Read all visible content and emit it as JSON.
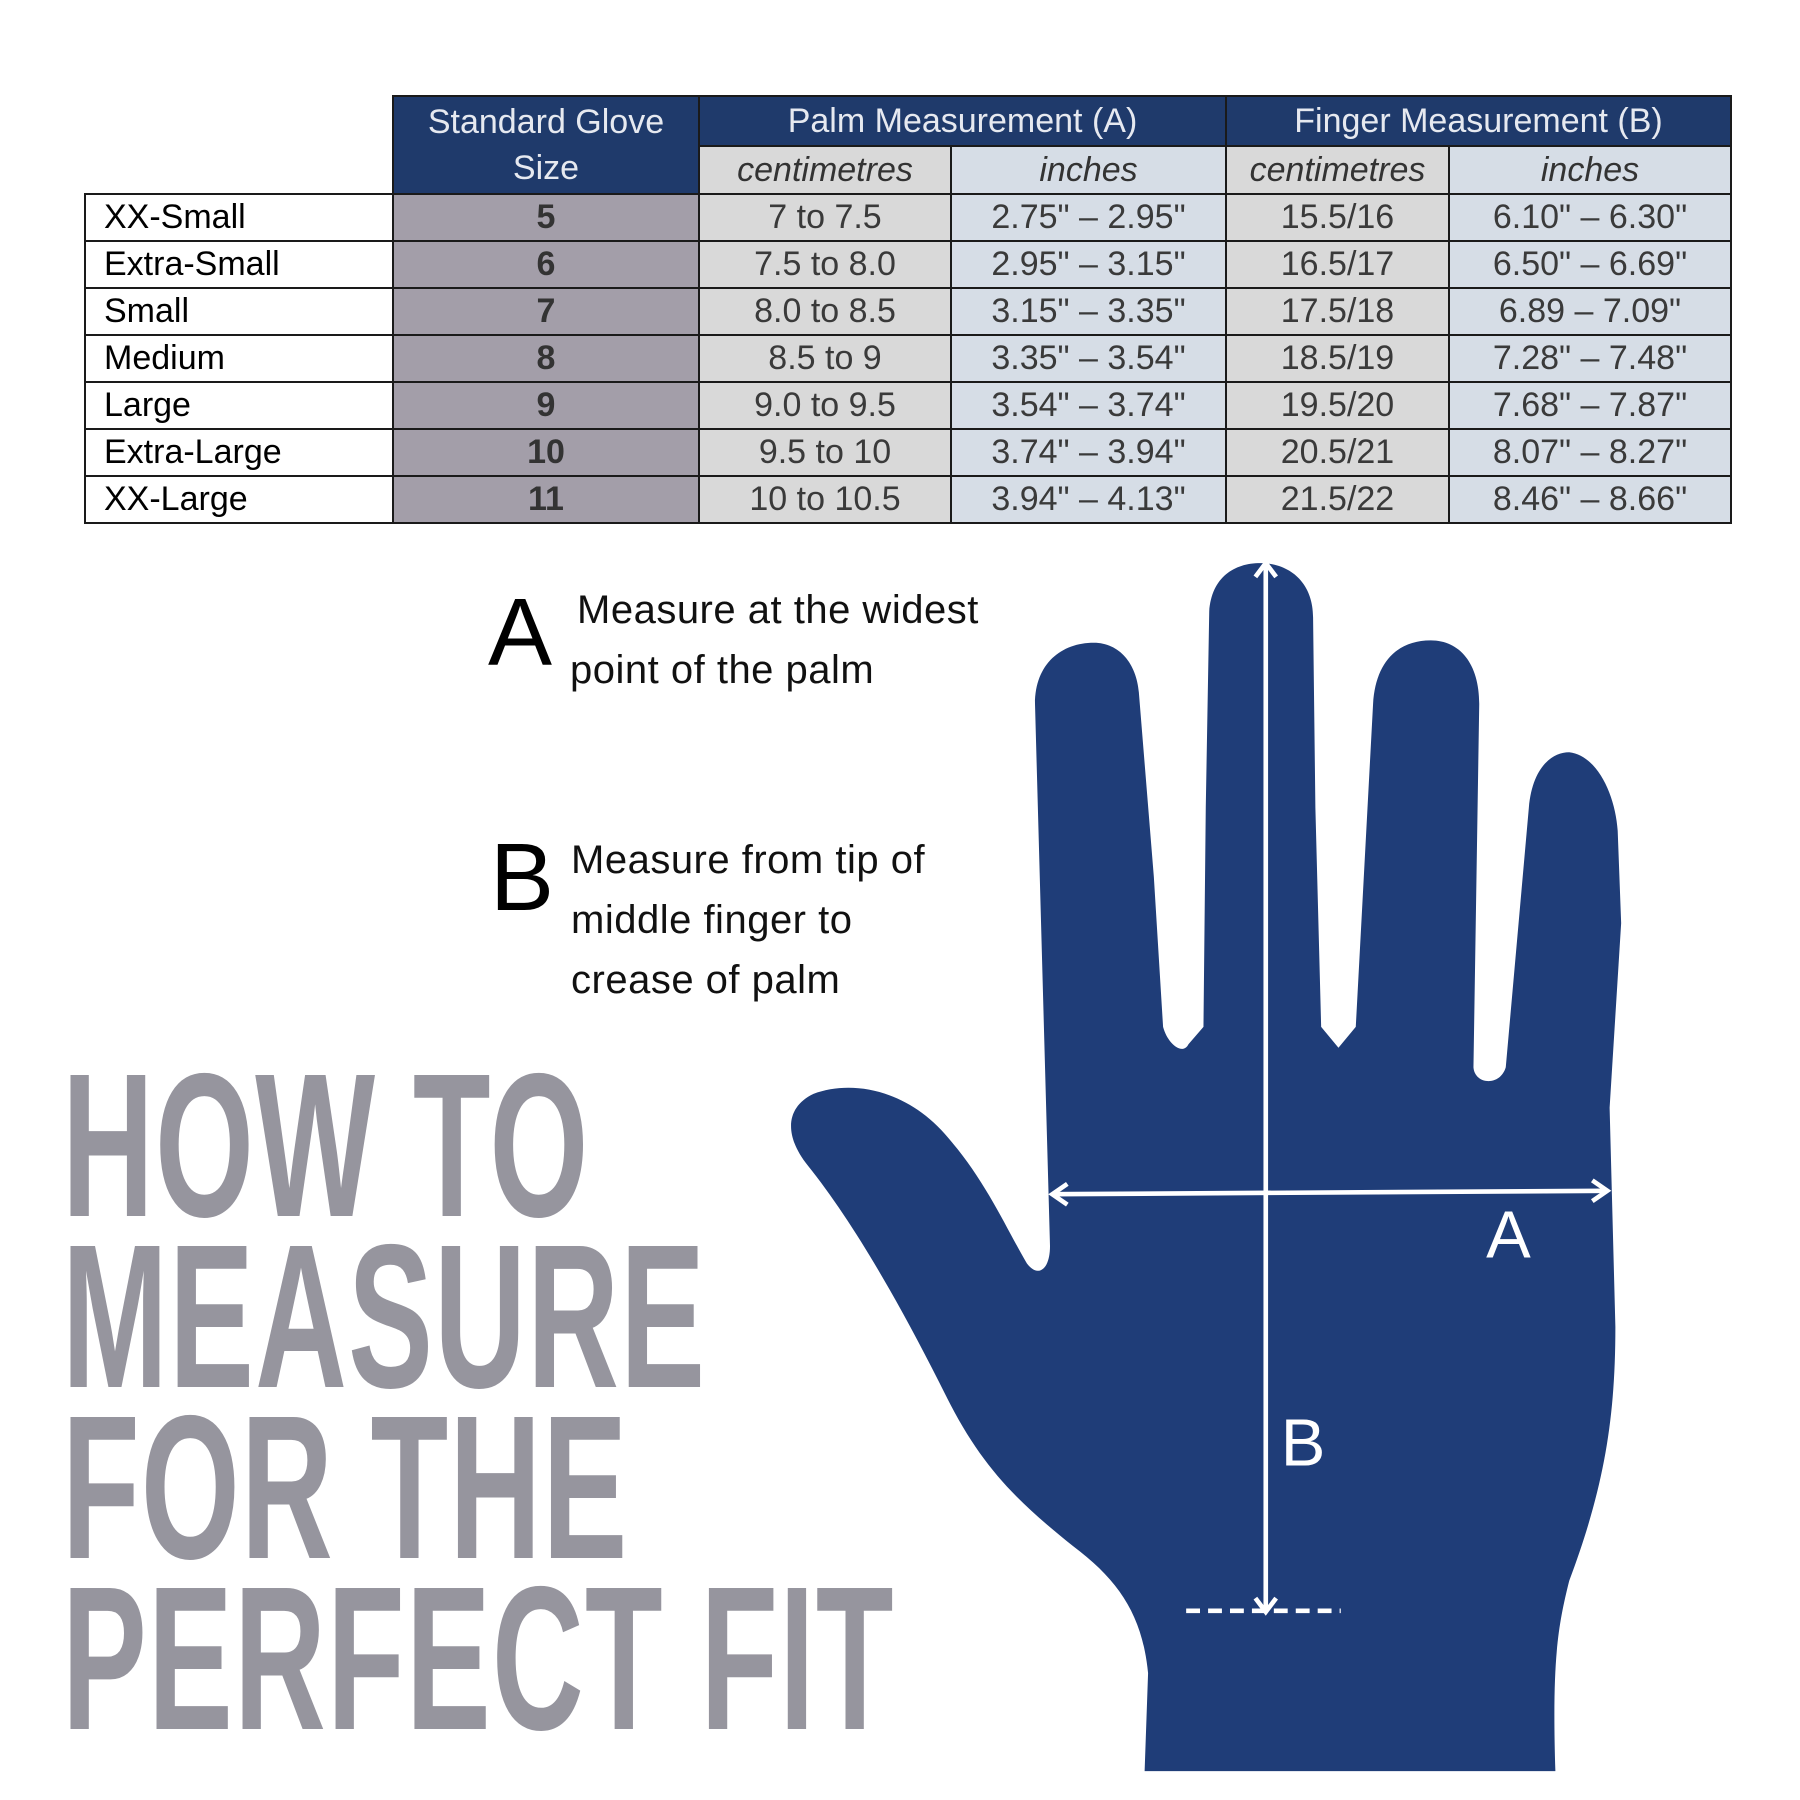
{
  "table": {
    "headers": {
      "size": "Standard Glove Size",
      "size_line1": "Standard Glove",
      "size_line2": "Size",
      "palm": "Palm Measurement (A)",
      "finger": "Finger Measurement (B)",
      "cm": "centimetres",
      "in": "inches"
    },
    "rows": [
      {
        "label": "XX-Small",
        "size": "5",
        "palm_cm": "7 to 7.5",
        "palm_in": "2.75\" – 2.95\"",
        "finger_cm": "15.5/16",
        "finger_in": "6.10\" – 6.30\""
      },
      {
        "label": "Extra-Small",
        "size": "6",
        "palm_cm": "7.5 to 8.0",
        "palm_in": "2.95\" – 3.15\"",
        "finger_cm": "16.5/17",
        "finger_in": "6.50\" – 6.69\""
      },
      {
        "label": "Small",
        "size": "7",
        "palm_cm": "8.0 to 8.5",
        "palm_in": "3.15\" – 3.35\"",
        "finger_cm": "17.5/18",
        "finger_in": "6.89 – 7.09\""
      },
      {
        "label": "Medium",
        "size": "8",
        "palm_cm": "8.5 to 9",
        "palm_in": "3.35\" – 3.54\"",
        "finger_cm": "18.5/19",
        "finger_in": "7.28\" – 7.48\""
      },
      {
        "label": "Large",
        "size": "9",
        "palm_cm": "9.0 to 9.5",
        "palm_in": "3.54\" – 3.74\"",
        "finger_cm": "19.5/20",
        "finger_in": "7.68\" – 7.87\""
      },
      {
        "label": "Extra-Large",
        "size": "10",
        "palm_cm": "9.5 to 10",
        "palm_in": "3.74\" – 3.94\"",
        "finger_cm": "20.5/21",
        "finger_in": "8.07\" – 8.27\""
      },
      {
        "label": "XX-Large",
        "size": "11",
        "palm_cm": "10 to 10.5",
        "palm_in": "3.94\" – 4.13\"",
        "finger_cm": "21.5/22",
        "finger_in": "8.46\" – 8.66\""
      }
    ]
  },
  "instructions": {
    "a": {
      "letter": "A",
      "line1": "Measure at the widest",
      "line2": "point of the palm"
    },
    "b": {
      "letter": "B",
      "line1": "Measure from tip of",
      "line2": "middle finger to",
      "line3": "crease of palm"
    }
  },
  "title": {
    "line1": "HOW TO",
    "line2": "MEASURE",
    "line3": "FOR THE",
    "line4": "PERFECT FIT"
  },
  "hand": {
    "label_a": "A",
    "label_b": "B",
    "icon": "hand-silhouette"
  },
  "colors": {
    "navy": "#1f3a6b",
    "hand": "#1f3d78",
    "size_col": "#a39ea9",
    "title": "#96959e"
  }
}
